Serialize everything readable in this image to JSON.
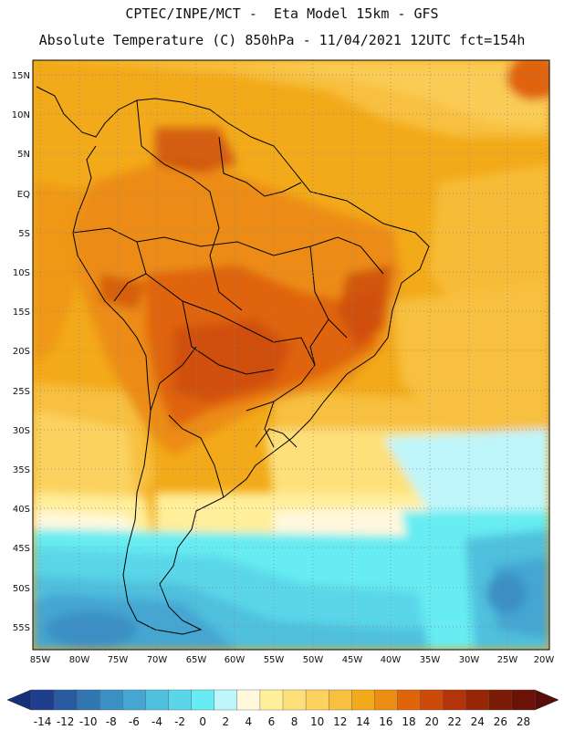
{
  "header": {
    "line1": "CPTEC/INPE/MCT -  Eta Model 15km - GFS",
    "line2": "Absolute Temperature (C) 850hPa - 11/04/2021 12UTC fct=154h"
  },
  "map": {
    "lat_labels": [
      "15N",
      "10N",
      "5N",
      "EQ",
      "5S",
      "10S",
      "15S",
      "20S",
      "25S",
      "30S",
      "35S",
      "40S",
      "45S",
      "50S",
      "55S"
    ],
    "lon_labels": [
      "85W",
      "80W",
      "75W",
      "70W",
      "65W",
      "60W",
      "55W",
      "50W",
      "45W",
      "40W",
      "35W",
      "30W",
      "25W",
      "20W"
    ],
    "grid": "dotted"
  },
  "colorbar": {
    "ticks": [
      "-14",
      "-12",
      "-10",
      "-8",
      "-6",
      "-4",
      "-2",
      "0",
      "2",
      "4",
      "6",
      "8",
      "10",
      "12",
      "14",
      "16",
      "18",
      "20",
      "22",
      "24",
      "26",
      "28"
    ],
    "colors": [
      "#1f3f8c",
      "#2a5aa0",
      "#3275b3",
      "#3a8fc4",
      "#45a6d2",
      "#4fc0de",
      "#5ad6e8",
      "#66ecf2",
      "#bff6fb",
      "#fff8dc",
      "#ffee9a",
      "#fde07a",
      "#fbd25e",
      "#f7c040",
      "#f3aa1a",
      "#ec8c12",
      "#e0640c",
      "#cc4a0a",
      "#b33408",
      "#962606",
      "#7a1c06",
      "#6a1206"
    ]
  }
}
